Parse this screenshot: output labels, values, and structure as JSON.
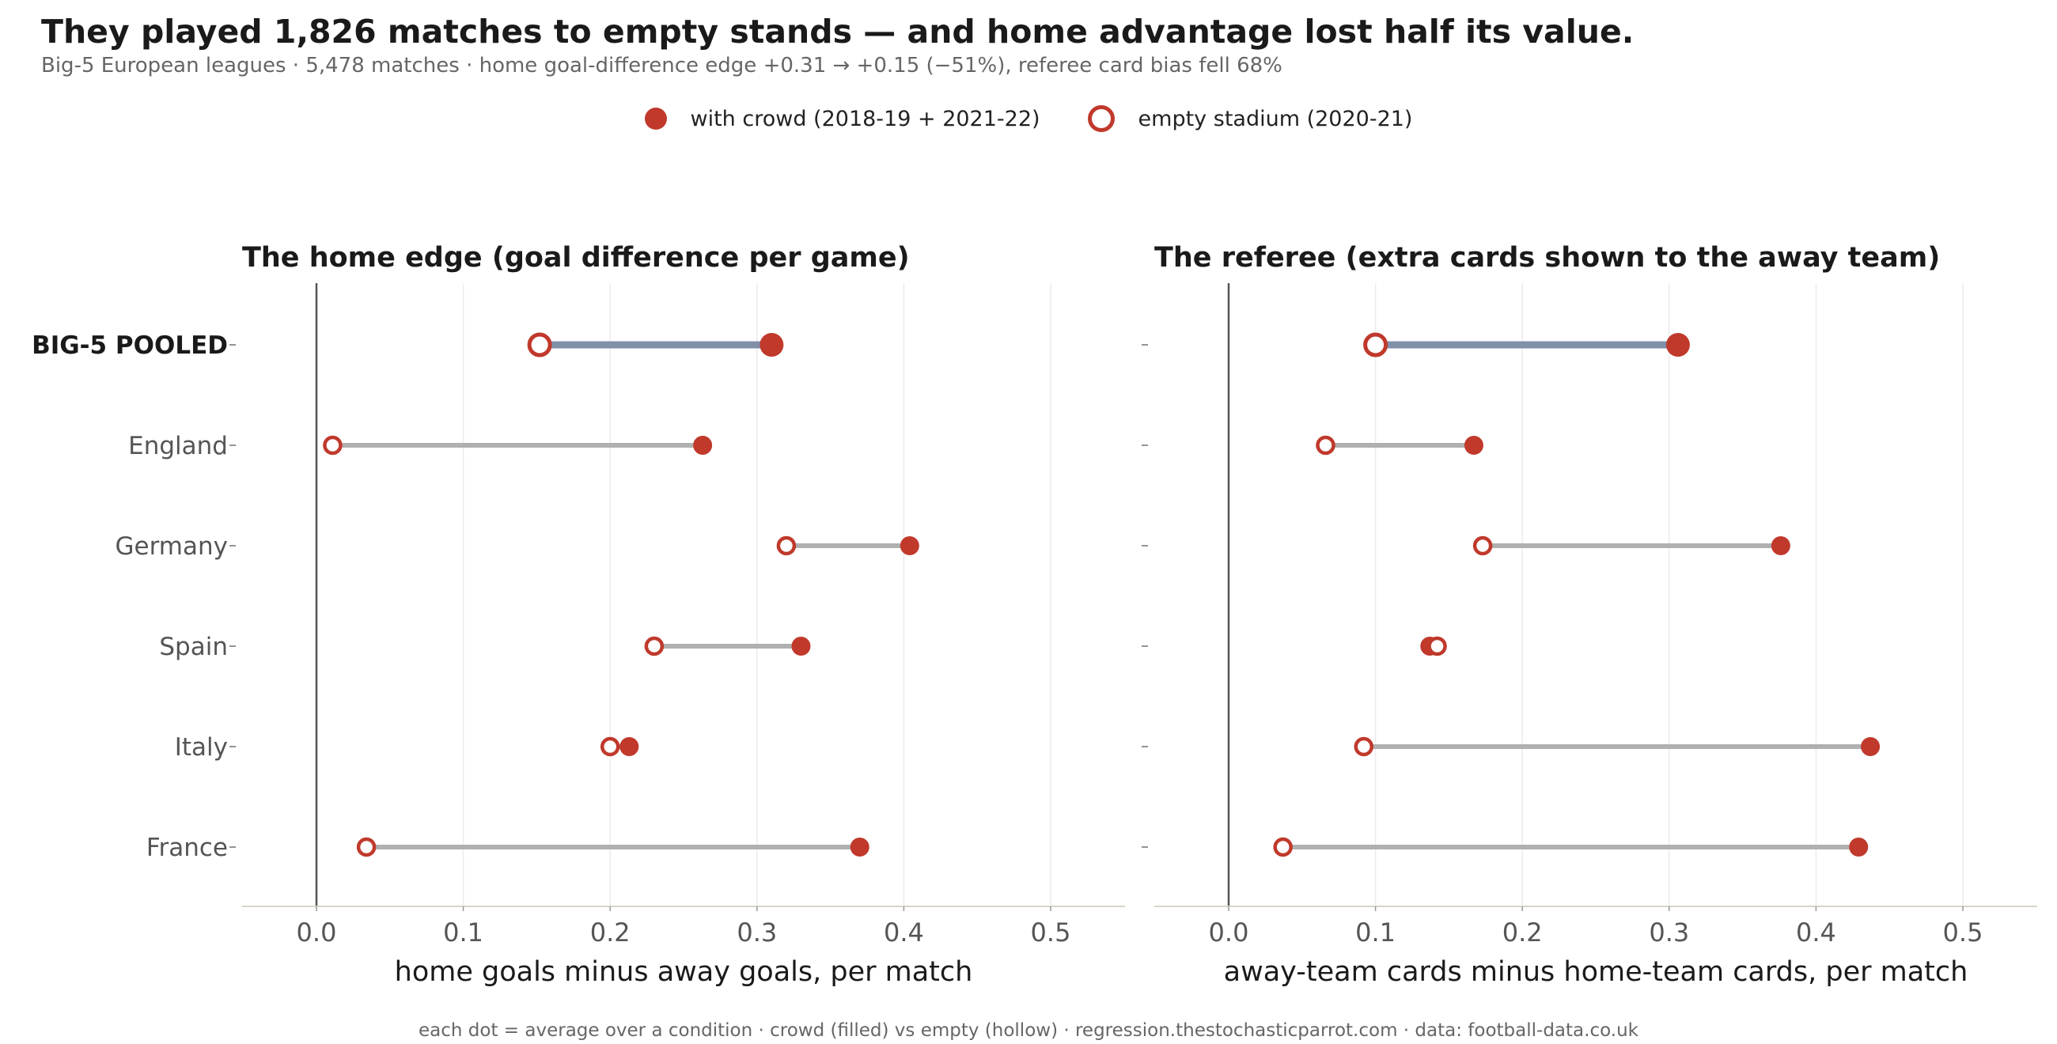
{
  "header": {
    "title": "They played 1,826 matches to empty stands — and home advantage lost half its value.",
    "subtitle": "Big-5 European leagues · 5,478 matches · home goal-difference edge +0.31 → +0.15 (−51%), referee card bias fell 68%"
  },
  "legend": {
    "crowd_label": "with crowd (2018-19 + 2021-22)",
    "empty_label": "empty stadium (2020-21)"
  },
  "footer": {
    "note": "each dot = average over a condition · crowd (filled) vs empty (hollow) · regression.thestochasticparrot.com · data: football-data.co.uk"
  },
  "colors": {
    "dot": "#c0392b",
    "pooled_line": "#8090a8",
    "country_line": "#b0b0b0"
  },
  "chart_data": [
    {
      "type": "scatter",
      "title": "The home edge (goal difference per game)",
      "xlabel": "home goals minus away goals, per match",
      "xlim": [
        -0.05,
        0.55
      ],
      "xticks": [
        "0.0",
        "0.1",
        "0.2",
        "0.3",
        "0.4",
        "0.5"
      ],
      "grid": true,
      "categories": [
        "BIG-5 POOLED",
        "England",
        "Germany",
        "Spain",
        "Italy",
        "France"
      ],
      "series": [
        {
          "name": "with crowd (2018-19 + 2021-22)",
          "values": [
            0.31,
            0.263,
            0.404,
            0.33,
            0.213,
            0.37
          ]
        },
        {
          "name": "empty stadium (2020-21)",
          "values": [
            0.152,
            0.011,
            0.32,
            0.23,
            0.2,
            0.034
          ]
        }
      ]
    },
    {
      "type": "scatter",
      "title": "The referee (extra cards shown to the away team)",
      "xlabel": "away-team cards minus home-team cards, per match",
      "xlim": [
        -0.05,
        0.55
      ],
      "xticks": [
        "0.0",
        "0.1",
        "0.2",
        "0.3",
        "0.4",
        "0.5"
      ],
      "grid": true,
      "categories": [
        "BIG-5 POOLED",
        "England",
        "Germany",
        "Spain",
        "Italy",
        "France"
      ],
      "series": [
        {
          "name": "with crowd (2018-19 + 2021-22)",
          "values": [
            0.306,
            0.167,
            0.376,
            0.137,
            0.437,
            0.429
          ]
        },
        {
          "name": "empty stadium (2020-21)",
          "values": [
            0.1,
            0.066,
            0.173,
            0.142,
            0.092,
            0.037
          ]
        }
      ]
    }
  ]
}
